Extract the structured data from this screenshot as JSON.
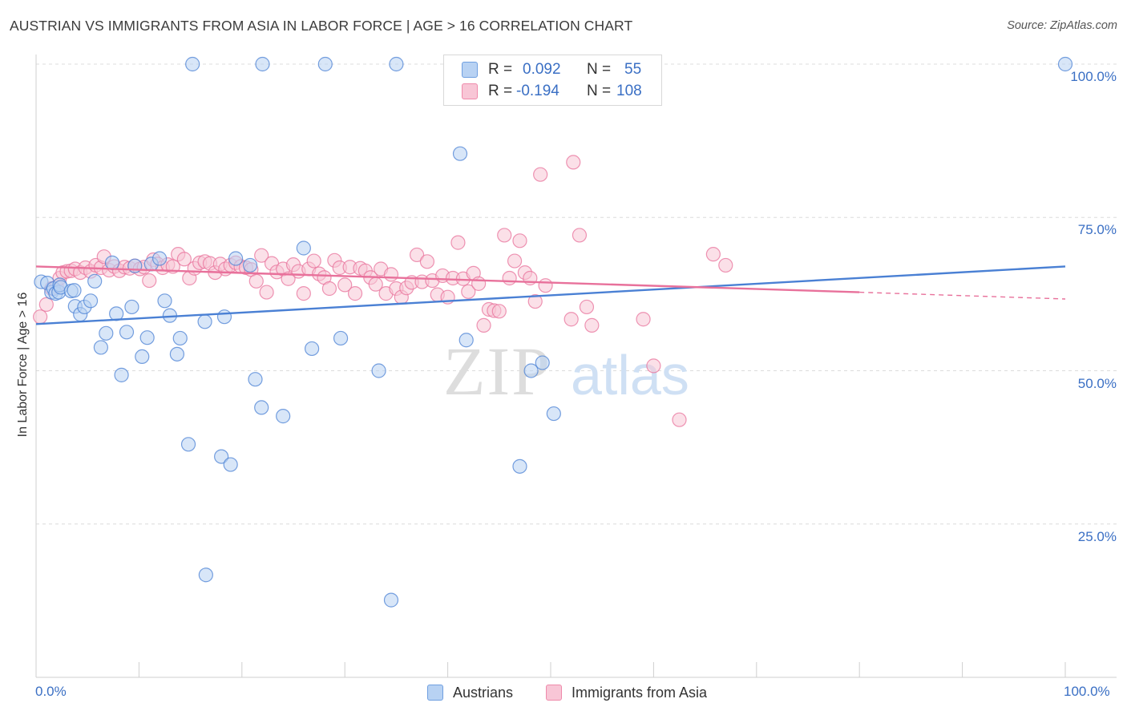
{
  "title": "AUSTRIAN VS IMMIGRANTS FROM ASIA IN LABOR FORCE | AGE > 16 CORRELATION CHART",
  "source": "Source: ZipAtlas.com",
  "watermark": {
    "zip": "ZIP",
    "atlas": "atlas"
  },
  "legend": {
    "rows": [
      {
        "r_label": "R =",
        "r_value": "0.092",
        "n_label": "N =",
        "n_value": "55",
        "color": "#6f9fe0",
        "fill": "#b8d2f3"
      },
      {
        "r_label": "R =",
        "r_value": "-0.194",
        "n_label": "N =",
        "n_value": "108",
        "color": "#ef8aab",
        "fill": "#f8c6d6"
      }
    ]
  },
  "bottom_legend": [
    {
      "label": "Austrians",
      "color": "#6f9fe0",
      "fill": "#b8d2f3"
    },
    {
      "label": "Immigrants from Asia",
      "color": "#ef8aab",
      "fill": "#f8c6d6"
    }
  ],
  "chart_data": {
    "type": "scatter",
    "title": "AUSTRIAN VS IMMIGRANTS FROM ASIA IN LABOR FORCE | AGE > 16 CORRELATION CHART",
    "xlabel": "",
    "ylabel": "In Labor Force | Age > 16",
    "xlim": [
      0,
      100
    ],
    "ylim": [
      0,
      100
    ],
    "x_tick_labels": [
      "0.0%",
      "100.0%"
    ],
    "y_ticks": [
      25,
      50,
      75,
      100
    ],
    "y_tick_labels": [
      "25.0%",
      "50.0%",
      "75.0%",
      "100.0%"
    ],
    "grid": "horizontal dashed",
    "legend_position": "top-center",
    "series": [
      {
        "name": "Austrians",
        "color": "#4a80d4",
        "fill": "#b8d2f3",
        "trend": {
          "x": [
            0,
            100
          ],
          "y": [
            57.6,
            67.0
          ]
        },
        "points": [
          [
            0.5,
            64.5
          ],
          [
            1.1,
            64.3
          ],
          [
            1.5,
            62.8
          ],
          [
            1.7,
            63.4
          ],
          [
            1.9,
            62.6
          ],
          [
            2.2,
            62.8
          ],
          [
            2.3,
            64.0
          ],
          [
            2.4,
            63.6
          ],
          [
            3.4,
            63.0
          ],
          [
            3.7,
            63.1
          ],
          [
            3.8,
            60.5
          ],
          [
            4.3,
            59.2
          ],
          [
            4.7,
            60.4
          ],
          [
            5.3,
            61.4
          ],
          [
            5.7,
            64.6
          ],
          [
            6.3,
            53.8
          ],
          [
            6.8,
            56.1
          ],
          [
            7.4,
            67.6
          ],
          [
            7.8,
            59.3
          ],
          [
            8.3,
            49.3
          ],
          [
            8.8,
            56.3
          ],
          [
            9.3,
            60.4
          ],
          [
            9.6,
            67.1
          ],
          [
            10.3,
            52.3
          ],
          [
            10.8,
            55.4
          ],
          [
            11.2,
            67.4
          ],
          [
            12.0,
            68.3
          ],
          [
            12.5,
            61.4
          ],
          [
            13.0,
            59.0
          ],
          [
            13.7,
            52.7
          ],
          [
            14.0,
            55.3
          ],
          [
            14.8,
            38.0
          ],
          [
            15.2,
            100.0
          ],
          [
            16.4,
            58.0
          ],
          [
            16.5,
            16.7
          ],
          [
            18.0,
            36.0
          ],
          [
            18.3,
            58.8
          ],
          [
            18.9,
            34.7
          ],
          [
            19.4,
            68.3
          ],
          [
            20.8,
            67.2
          ],
          [
            21.3,
            48.6
          ],
          [
            21.9,
            44.0
          ],
          [
            22.0,
            100.0
          ],
          [
            24.0,
            42.6
          ],
          [
            26.0,
            70.0
          ],
          [
            26.8,
            53.6
          ],
          [
            28.1,
            100.0
          ],
          [
            29.6,
            55.3
          ],
          [
            33.3,
            50.0
          ],
          [
            34.5,
            12.6
          ],
          [
            35.0,
            100.0
          ],
          [
            41.2,
            85.4
          ],
          [
            41.8,
            55.0
          ],
          [
            47.0,
            34.4
          ],
          [
            48.1,
            50.0
          ],
          [
            49.2,
            51.3
          ],
          [
            50.3,
            43.0
          ],
          [
            100.0,
            100.0
          ]
        ]
      },
      {
        "name": "Immigrants from Asia",
        "color": "#e8719b",
        "fill": "#f8c6d6",
        "trend": {
          "x": [
            0,
            80
          ],
          "y": [
            67.0,
            62.8
          ]
        },
        "trend_extension": {
          "x": [
            80,
            100
          ],
          "y": [
            62.8,
            61.7
          ]
        },
        "points": [
          [
            0.4,
            58.8
          ],
          [
            1.0,
            60.8
          ],
          [
            1.5,
            63.4
          ],
          [
            2.0,
            63.7
          ],
          [
            2.3,
            65.1
          ],
          [
            2.6,
            66.0
          ],
          [
            3.0,
            66.2
          ],
          [
            3.4,
            66.3
          ],
          [
            3.8,
            66.6
          ],
          [
            4.3,
            66.0
          ],
          [
            4.8,
            66.8
          ],
          [
            5.3,
            66.2
          ],
          [
            5.8,
            67.2
          ],
          [
            6.3,
            66.8
          ],
          [
            6.6,
            68.6
          ],
          [
            7.1,
            66.4
          ],
          [
            7.6,
            67.0
          ],
          [
            8.1,
            66.3
          ],
          [
            8.6,
            66.9
          ],
          [
            9.1,
            66.7
          ],
          [
            9.6,
            67.1
          ],
          [
            10.1,
            66.6
          ],
          [
            10.5,
            66.9
          ],
          [
            11.0,
            64.7
          ],
          [
            11.4,
            68.1
          ],
          [
            11.8,
            67.4
          ],
          [
            12.3,
            66.8
          ],
          [
            12.8,
            67.3
          ],
          [
            13.3,
            67.0
          ],
          [
            13.8,
            69.0
          ],
          [
            14.4,
            68.2
          ],
          [
            14.9,
            65.1
          ],
          [
            15.4,
            66.7
          ],
          [
            15.9,
            67.6
          ],
          [
            16.4,
            67.8
          ],
          [
            16.9,
            67.5
          ],
          [
            17.4,
            66.0
          ],
          [
            17.9,
            67.4
          ],
          [
            18.4,
            66.6
          ],
          [
            18.9,
            67.2
          ],
          [
            19.4,
            67.6
          ],
          [
            19.9,
            67.0
          ],
          [
            20.4,
            66.8
          ],
          [
            20.9,
            66.5
          ],
          [
            21.4,
            64.6
          ],
          [
            21.9,
            68.8
          ],
          [
            22.4,
            62.8
          ],
          [
            22.9,
            67.5
          ],
          [
            23.4,
            66.1
          ],
          [
            24.0,
            66.6
          ],
          [
            24.5,
            65.0
          ],
          [
            25.0,
            67.3
          ],
          [
            25.5,
            66.2
          ],
          [
            26.0,
            62.6
          ],
          [
            26.5,
            66.6
          ],
          [
            27.0,
            67.9
          ],
          [
            27.5,
            65.8
          ],
          [
            28.0,
            65.2
          ],
          [
            28.5,
            63.4
          ],
          [
            29.0,
            68.0
          ],
          [
            29.5,
            66.8
          ],
          [
            30.0,
            64.0
          ],
          [
            30.5,
            66.9
          ],
          [
            31.0,
            62.6
          ],
          [
            31.5,
            66.7
          ],
          [
            32.0,
            66.3
          ],
          [
            32.5,
            65.2
          ],
          [
            33.0,
            64.1
          ],
          [
            33.5,
            66.6
          ],
          [
            34.0,
            62.6
          ],
          [
            34.5,
            65.7
          ],
          [
            35.0,
            63.4
          ],
          [
            35.5,
            62.0
          ],
          [
            36.0,
            63.5
          ],
          [
            36.5,
            64.4
          ],
          [
            37.0,
            68.9
          ],
          [
            37.5,
            64.5
          ],
          [
            38.0,
            67.8
          ],
          [
            38.5,
            64.7
          ],
          [
            39.0,
            62.4
          ],
          [
            39.5,
            65.5
          ],
          [
            40.0,
            62.0
          ],
          [
            40.5,
            65.1
          ],
          [
            41.0,
            70.9
          ],
          [
            41.5,
            65.0
          ],
          [
            42.0,
            62.9
          ],
          [
            42.5,
            65.9
          ],
          [
            43.0,
            64.2
          ],
          [
            43.5,
            57.4
          ],
          [
            44.0,
            60.0
          ],
          [
            44.5,
            59.8
          ],
          [
            45.0,
            59.7
          ],
          [
            45.5,
            72.1
          ],
          [
            46.0,
            65.1
          ],
          [
            46.5,
            67.9
          ],
          [
            47.0,
            71.2
          ],
          [
            47.5,
            66.0
          ],
          [
            48.0,
            65.1
          ],
          [
            48.5,
            61.3
          ],
          [
            49.0,
            82.0
          ],
          [
            49.5,
            63.9
          ],
          [
            52.0,
            58.4
          ],
          [
            52.2,
            84.0
          ],
          [
            52.8,
            72.1
          ],
          [
            53.5,
            60.4
          ],
          [
            54.0,
            57.4
          ],
          [
            59.0,
            58.4
          ],
          [
            60.0,
            50.8
          ],
          [
            62.5,
            42.0
          ],
          [
            65.8,
            69.0
          ],
          [
            67.0,
            67.2
          ]
        ]
      }
    ]
  }
}
